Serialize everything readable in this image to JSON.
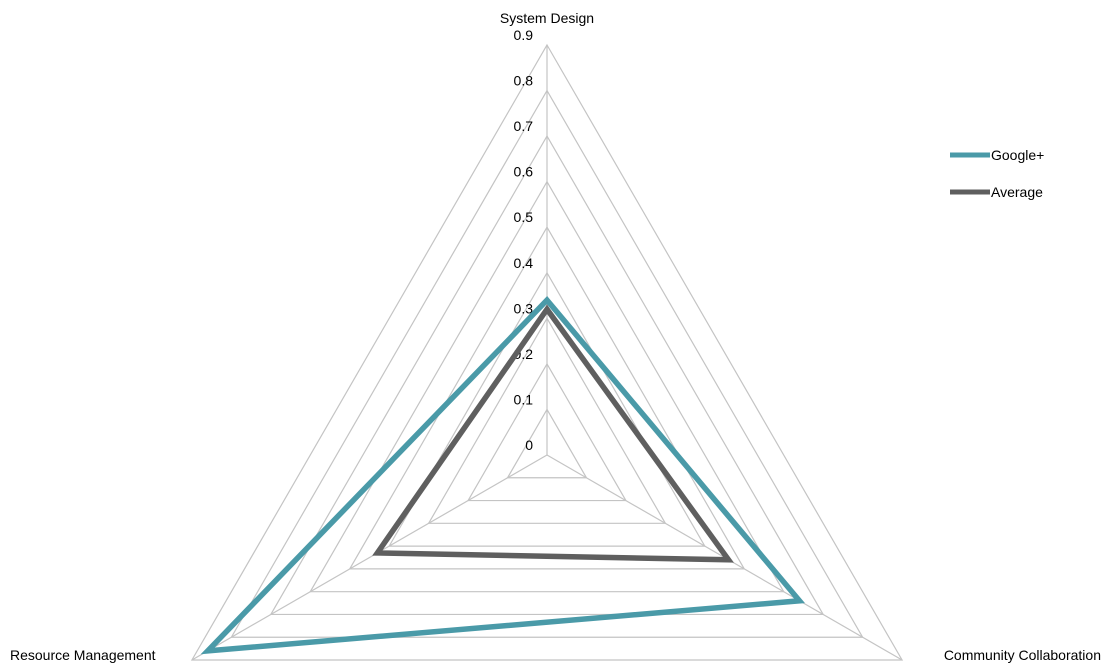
{
  "chart_data": {
    "type": "radar",
    "axes": [
      "System Design",
      "Community Collaboration",
      "Resource Management"
    ],
    "ticks": [
      "0",
      "0.1",
      "0.2",
      "0.3",
      "0.4",
      "0.5",
      "0.6",
      "0.7",
      "0.8",
      "0.9"
    ],
    "rlim": [
      0,
      0.9
    ],
    "grid": true,
    "legend_position": "right",
    "series": [
      {
        "name": "Google+",
        "values": [
          0.34,
          0.64,
          0.86
        ],
        "color": "#4a9aa8"
      },
      {
        "name": "Average",
        "values": [
          0.32,
          0.46,
          0.43
        ],
        "color": "#5f5f5f"
      }
    ]
  }
}
